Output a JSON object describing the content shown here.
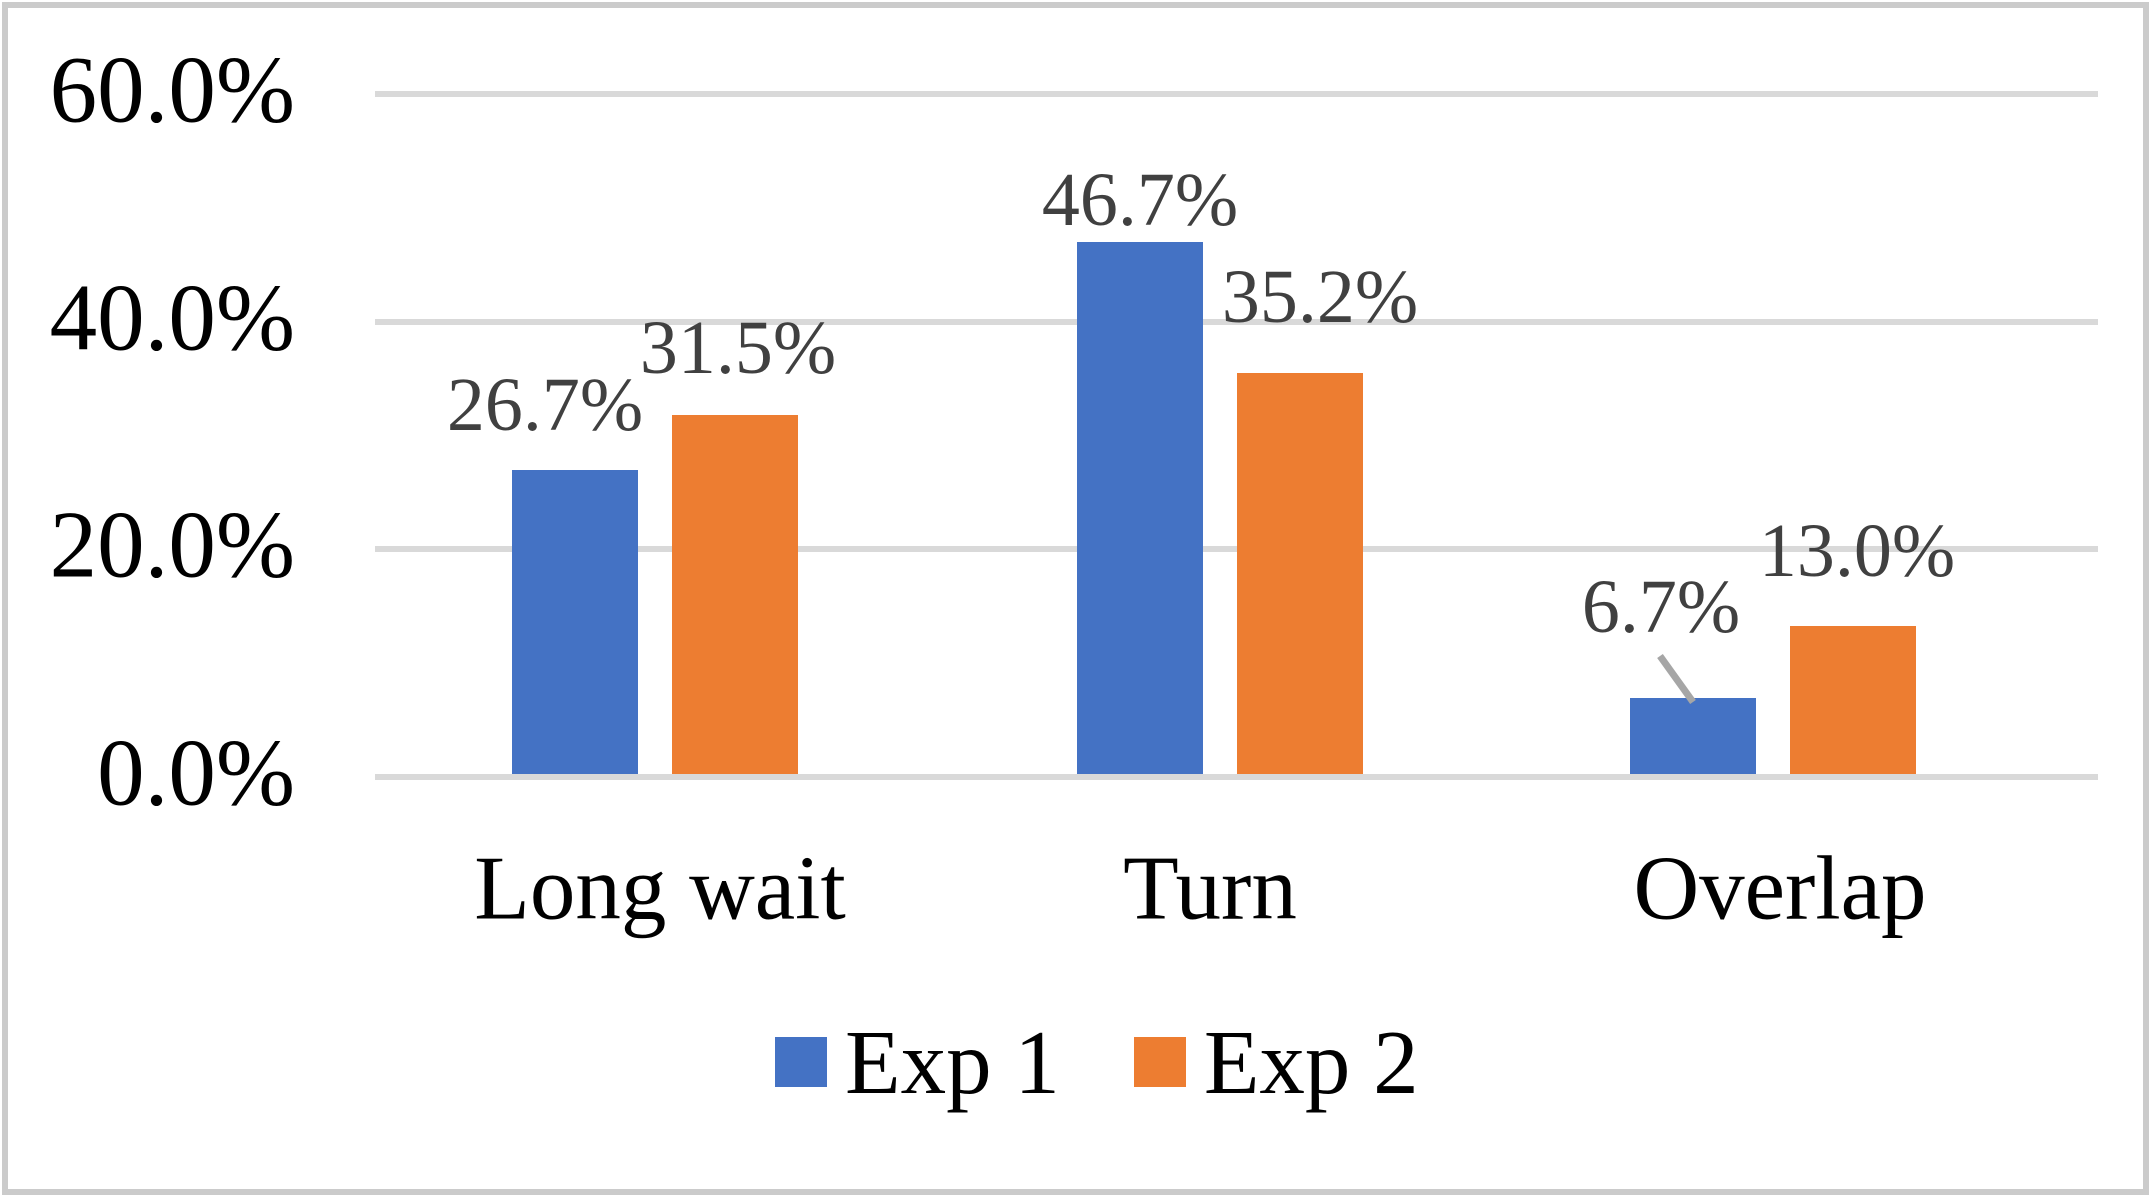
{
  "chart_data": {
    "type": "bar",
    "title": "",
    "xlabel": "",
    "ylabel": "",
    "categories": [
      "Long wait",
      "Turn",
      "Overlap"
    ],
    "series": [
      {
        "name": "Exp 1",
        "color": "#4472c4",
        "values": [
          26.7,
          46.7,
          6.7
        ],
        "labels": [
          "26.7%",
          "46.7%",
          "6.7%"
        ]
      },
      {
        "name": "Exp 2",
        "color": "#ed7d31",
        "values": [
          31.5,
          35.2,
          13.0
        ],
        "labels": [
          "31.5%",
          "35.2%",
          "13.0%"
        ]
      }
    ],
    "yticks": [
      "60.0%",
      "40.0%",
      "20.0%",
      "0.0%"
    ],
    "ylim": [
      0,
      60
    ],
    "grid": true,
    "gridline_color": "#d9d9d9",
    "data_label_color": "#404040",
    "legend_position": "bottom",
    "callout": {
      "label": "6.7%",
      "series": "Exp 1",
      "category": "Overlap",
      "leader_line_color": "#a6a6a6"
    }
  }
}
